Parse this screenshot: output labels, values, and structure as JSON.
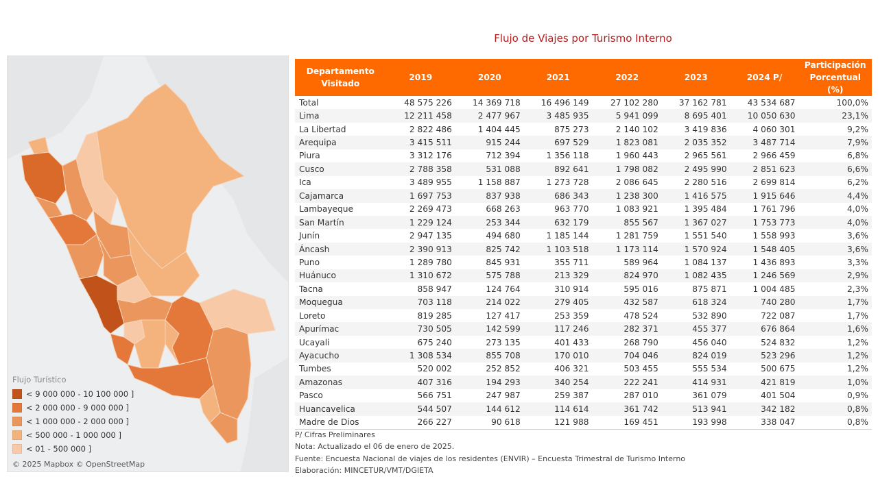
{
  "title": "Flujo de Viajes por Turismo Interno",
  "map": {
    "legend_title": "Flujo Turístico",
    "legend": [
      {
        "label": "< 9 000 000 - 10 100 000 ]",
        "color": "#c0521a"
      },
      {
        "label": "< 2 000 000 - 9 000 000 ]",
        "color": "#e3783a"
      },
      {
        "label": "< 1 000 000 - 2 000 000 ]",
        "color": "#eb965c"
      },
      {
        "label": "< 500 000 - 1 000 000 ]",
        "color": "#f4b27d"
      },
      {
        "label": "< 01 - 500 000 ]",
        "color": "#f8c9a7"
      }
    ],
    "attribution": "© 2025 Mapbox © OpenStreetMap"
  },
  "chart_data": {
    "type": "table",
    "columns": [
      "Departamento Visitado",
      "2019",
      "2020",
      "2021",
      "2022",
      "2023",
      "2024 P/",
      "Participación Porcentual (%)"
    ],
    "rows": [
      [
        "Total",
        "48 575 226",
        "14 369 718",
        "16 496 149",
        "27 102 280",
        "37 162 781",
        "43 534 687",
        "100,0%"
      ],
      [
        "Lima",
        "12 211 458",
        "2 477 967",
        "3 485 935",
        "5 941 099",
        "8 695 401",
        "10 050 630",
        "23,1%"
      ],
      [
        "La Libertad",
        "2 822 486",
        "1 404 445",
        "875 273",
        "2 140 102",
        "3 419 836",
        "4 060 301",
        "9,2%"
      ],
      [
        "Arequipa",
        "3 415 511",
        "915 244",
        "697 529",
        "1 823 081",
        "2 035 352",
        "3 487 714",
        "7,9%"
      ],
      [
        "Piura",
        "3 312 176",
        "712 394",
        "1 356 118",
        "1 960 443",
        "2 965 561",
        "2 966 459",
        "6,8%"
      ],
      [
        "Cusco",
        "2 788 358",
        "531 088",
        "892 641",
        "1 798 082",
        "2 495 990",
        "2 851 623",
        "6,6%"
      ],
      [
        "Ica",
        "3 489 955",
        "1 158 887",
        "1 273 728",
        "2 086 645",
        "2 280 516",
        "2 699 814",
        "6,2%"
      ],
      [
        "Cajamarca",
        "1 697 753",
        "837 938",
        "686 343",
        "1 238 300",
        "1 416 575",
        "1 915 646",
        "4,4%"
      ],
      [
        "Lambayeque",
        "2 269 473",
        "668 263",
        "963 770",
        "1 083 921",
        "1 395 484",
        "1 761 796",
        "4,0%"
      ],
      [
        "San Martín",
        "1 229 124",
        "253 344",
        "632 179",
        "855 567",
        "1 367 027",
        "1 753 773",
        "4,0%"
      ],
      [
        "Junín",
        "2 947 135",
        "494 680",
        "1 185 144",
        "1 281 759",
        "1 551 540",
        "1 558 993",
        "3,6%"
      ],
      [
        "Áncash",
        "2 390 913",
        "825 742",
        "1 103 518",
        "1 173 114",
        "1 570 924",
        "1 548 405",
        "3,6%"
      ],
      [
        "Puno",
        "1 289 780",
        "845 931",
        "355 711",
        "589 964",
        "1 084 137",
        "1 436 893",
        "3,3%"
      ],
      [
        "Huánuco",
        "1 310 672",
        "575 788",
        "213 329",
        "824 970",
        "1 082 435",
        "1 246 569",
        "2,9%"
      ],
      [
        "Tacna",
        "858 947",
        "124 764",
        "310 914",
        "595 016",
        "875 871",
        "1 004 485",
        "2,3%"
      ],
      [
        "Moquegua",
        "703 118",
        "214 022",
        "279 405",
        "432 587",
        "618 324",
        "740 280",
        "1,7%"
      ],
      [
        "Loreto",
        "819 285",
        "127 417",
        "253 359",
        "478 524",
        "532 890",
        "722 087",
        "1,7%"
      ],
      [
        "Apurímac",
        "730 505",
        "142 599",
        "117 246",
        "282 371",
        "455 377",
        "676 864",
        "1,6%"
      ],
      [
        "Ucayali",
        "675 240",
        "273 135",
        "401 433",
        "268 790",
        "456 040",
        "524 832",
        "1,2%"
      ],
      [
        "Ayacucho",
        "1 308 534",
        "855 708",
        "170 010",
        "704 046",
        "824 019",
        "523 296",
        "1,2%"
      ],
      [
        "Tumbes",
        "520 002",
        "252 852",
        "406 321",
        "503 455",
        "555 534",
        "500 675",
        "1,2%"
      ],
      [
        "Amazonas",
        "407 316",
        "194 293",
        "340 254",
        "222 241",
        "414 931",
        "421 819",
        "1,0%"
      ],
      [
        "Pasco",
        "566 751",
        "247 987",
        "259 387",
        "287 010",
        "361 079",
        "401 504",
        "0,9%"
      ],
      [
        "Huancavelica",
        "544 507",
        "144 612",
        "114 614",
        "361 742",
        "513 941",
        "342 182",
        "0,8%"
      ],
      [
        "Madre de Dios",
        "266 227",
        "90 618",
        "121 988",
        "169 451",
        "193 998",
        "338 047",
        "0,8%"
      ]
    ]
  },
  "notes": [
    "P/ Cifras Preliminares",
    "Nota: Actualizado el 06 de enero de 2025.",
    "Fuente: Encuesta Nacional de viajes de los residentes (ENVIR) – Encuesta Trimestral de Turismo Interno",
    "Elaboración: MINCETUR/VMT/DGIETA"
  ]
}
